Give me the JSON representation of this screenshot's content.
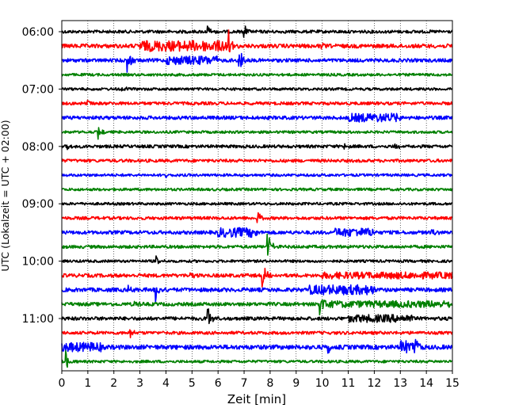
{
  "chart_data": {
    "type": "line",
    "subtype": "seismic-helicorder",
    "xlabel": "Zeit  [min]",
    "ylabel": "UTC (Lokalzeit = UTC + 02:00)",
    "xlim": [
      0,
      15
    ],
    "xticks": [
      0,
      1,
      2,
      3,
      4,
      5,
      6,
      7,
      8,
      9,
      10,
      11,
      12,
      13,
      14,
      15
    ],
    "xtick_labels": [
      "0",
      "1",
      "2",
      "3",
      "4",
      "5",
      "6",
      "7",
      "8",
      "9",
      "10",
      "11",
      "12",
      "13",
      "14",
      "15"
    ],
    "grid": "vertical dotted lines at each minute",
    "line_interval_minutes": 15,
    "start_time": "06:00",
    "ytick_labels": [
      {
        "row": 0,
        "label": "06:00"
      },
      {
        "row": 4,
        "label": "07:00"
      },
      {
        "row": 8,
        "label": "08:00"
      },
      {
        "row": 12,
        "label": "09:00"
      },
      {
        "row": 16,
        "label": "10:00"
      },
      {
        "row": 20,
        "label": "11:00"
      }
    ],
    "series_colors": [
      "#000000",
      "#ff0000",
      "#0000ff",
      "#008000"
    ],
    "traces": [
      {
        "row": 0,
        "noise": 0.35,
        "events": [
          {
            "t": 5.6,
            "a": 1.0
          },
          {
            "t": 7.0,
            "a": 1.0
          }
        ]
      },
      {
        "row": 1,
        "noise": 0.45,
        "busy": [
          [
            3.0,
            6.5,
            0.8
          ]
        ],
        "events": [
          {
            "t": 6.4,
            "a": 2.2
          },
          {
            "t": 9.9,
            "a": 0.6
          }
        ]
      },
      {
        "row": 2,
        "noise": 0.4,
        "busy": [
          [
            4.0,
            6.0,
            0.6
          ]
        ],
        "events": [
          {
            "t": 2.5,
            "a": 2.0
          },
          {
            "t": 6.8,
            "a": 2.4
          }
        ]
      },
      {
        "row": 3,
        "noise": 0.3,
        "events": []
      },
      {
        "row": 4,
        "noise": 0.3,
        "events": [
          {
            "t": 2.3,
            "a": 0.7
          }
        ]
      },
      {
        "row": 5,
        "noise": 0.35,
        "events": [
          {
            "t": 1.0,
            "a": 0.6
          }
        ]
      },
      {
        "row": 6,
        "noise": 0.4,
        "busy": [
          [
            11.0,
            13.0,
            0.6
          ]
        ],
        "events": []
      },
      {
        "row": 7,
        "noise": 0.3,
        "events": [
          {
            "t": 1.4,
            "a": 1.1
          }
        ]
      },
      {
        "row": 8,
        "noise": 0.35,
        "events": [
          {
            "t": 0.2,
            "a": 0.6
          },
          {
            "t": 10.8,
            "a": 0.6
          },
          {
            "t": 12.8,
            "a": 0.7
          }
        ]
      },
      {
        "row": 9,
        "noise": 0.35,
        "events": []
      },
      {
        "row": 10,
        "noise": 0.3,
        "events": [
          {
            "t": 3.9,
            "a": 0.5
          }
        ]
      },
      {
        "row": 11,
        "noise": 0.3,
        "events": []
      },
      {
        "row": 12,
        "noise": 0.3,
        "events": []
      },
      {
        "row": 13,
        "noise": 0.35,
        "events": [
          {
            "t": 7.5,
            "a": 1.4
          }
        ]
      },
      {
        "row": 14,
        "noise": 0.4,
        "busy": [
          [
            6.0,
            7.5,
            0.7
          ],
          [
            10.5,
            12.0,
            0.6
          ]
        ],
        "events": [
          {
            "t": 14.2,
            "a": 0.5
          }
        ]
      },
      {
        "row": 15,
        "noise": 0.35,
        "events": [
          {
            "t": 7.9,
            "a": 2.4
          }
        ]
      },
      {
        "row": 16,
        "noise": 0.3,
        "events": [
          {
            "t": 3.6,
            "a": 1.0
          }
        ]
      },
      {
        "row": 17,
        "noise": 0.4,
        "busy": [
          [
            10.0,
            15.0,
            0.4
          ]
        ],
        "events": [
          {
            "t": 7.7,
            "a": 2.0
          },
          {
            "t": 4.9,
            "a": 0.6
          }
        ]
      },
      {
        "row": 18,
        "noise": 0.45,
        "busy": [
          [
            9.5,
            12.0,
            0.7
          ]
        ],
        "events": [
          {
            "t": 2.5,
            "a": 1.0
          },
          {
            "t": 3.6,
            "a": 1.8
          }
        ]
      },
      {
        "row": 19,
        "noise": 0.4,
        "busy": [
          [
            10.0,
            15.0,
            0.4
          ]
        ],
        "events": [
          {
            "t": 9.9,
            "a": 1.8
          },
          {
            "t": 2.8,
            "a": 0.6
          }
        ]
      },
      {
        "row": 20,
        "noise": 0.4,
        "busy": [
          [
            11.0,
            13.5,
            0.5
          ]
        ],
        "events": [
          {
            "t": 5.6,
            "a": 2.0
          }
        ]
      },
      {
        "row": 21,
        "noise": 0.35,
        "events": [
          {
            "t": 2.6,
            "a": 0.8
          }
        ]
      },
      {
        "row": 22,
        "noise": 0.5,
        "busy": [
          [
            0.0,
            1.5,
            0.6
          ],
          [
            13.0,
            13.8,
            1.0
          ]
        ],
        "events": [
          {
            "t": 10.2,
            "a": 2.0
          },
          {
            "t": 13.4,
            "a": 1.3
          }
        ]
      },
      {
        "row": 23,
        "noise": 0.3,
        "events": [
          {
            "t": 0.15,
            "a": 1.6
          }
        ]
      }
    ]
  }
}
